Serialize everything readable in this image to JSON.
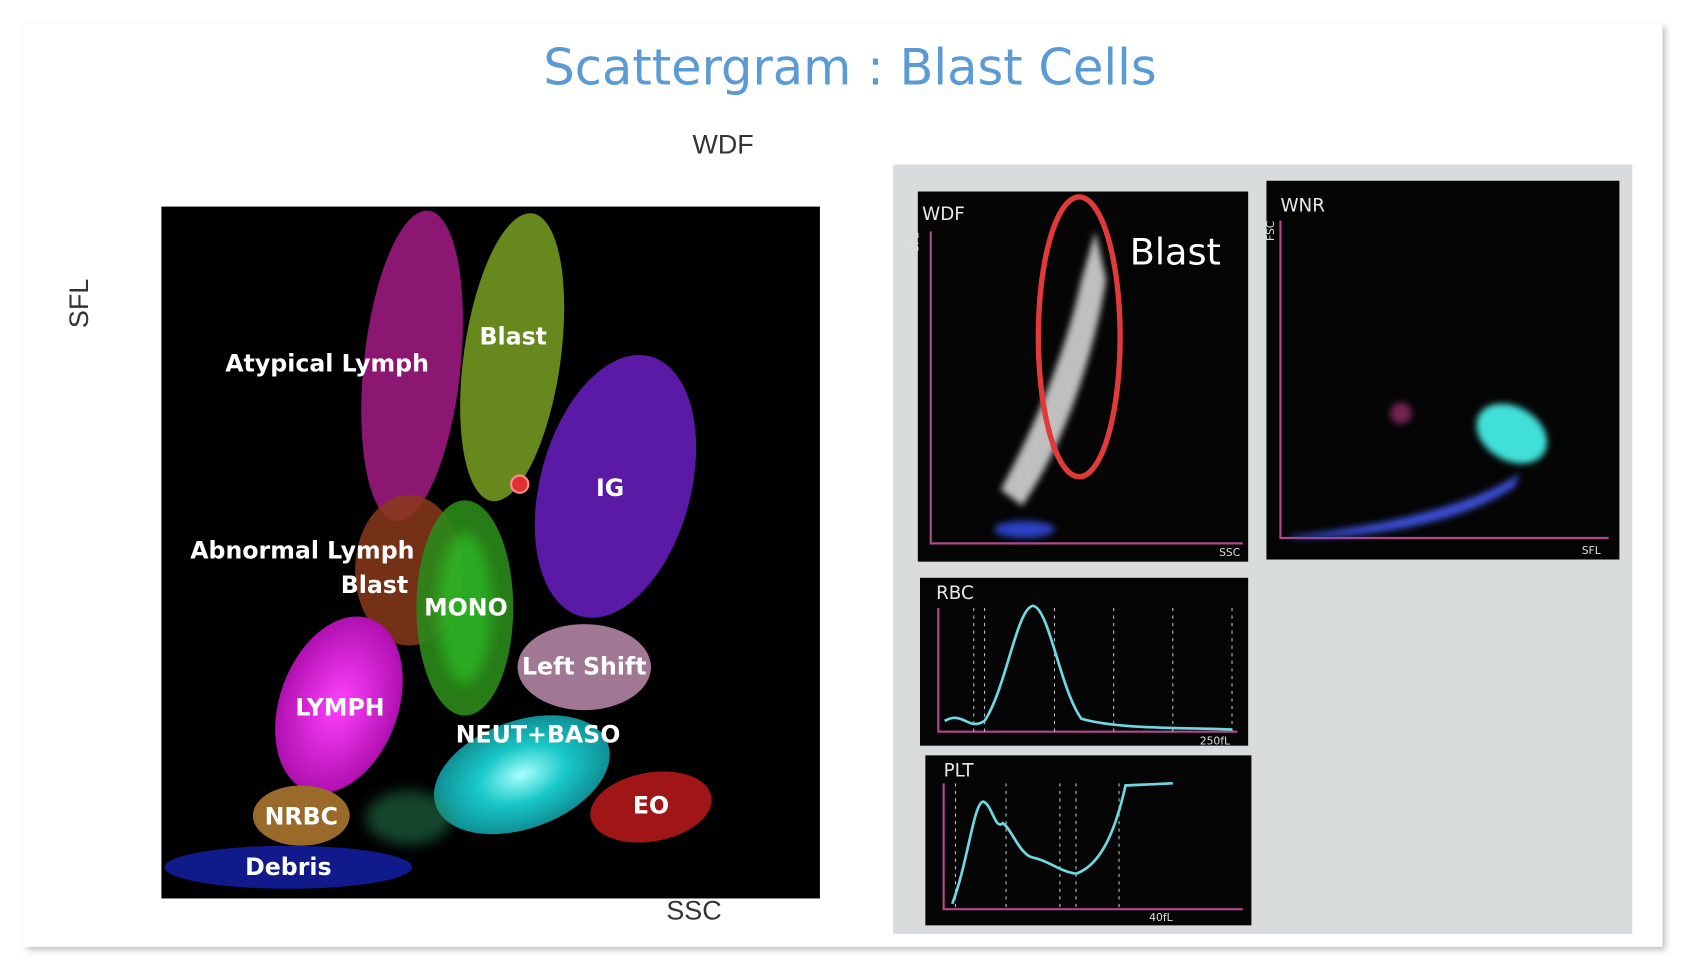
{
  "title": "Scattergram : Blast Cells",
  "left_diagram": {
    "title": "WDF",
    "y_axis": "SFL",
    "x_axis": "SSC",
    "clusters": [
      "Atypical Lymph",
      "Blast",
      "IG",
      "Abnormal Lymph",
      "Blast",
      "MONO",
      "Left Shift",
      "LYMPH",
      "NEUT+BASO",
      "EO",
      "NRBC",
      "Debris"
    ]
  },
  "right_photo": {
    "wdf": {
      "title": "WDF",
      "y_axis": "SFL",
      "x_axis": "SSC",
      "annotation": "Blast"
    },
    "wnr": {
      "title": "WNR",
      "y_axis": "FSC",
      "x_axis": "SFL"
    },
    "rbc": {
      "title": "RBC",
      "x_label": "250fL"
    },
    "plt": {
      "title": "PLT",
      "x_label": "40fL"
    }
  }
}
